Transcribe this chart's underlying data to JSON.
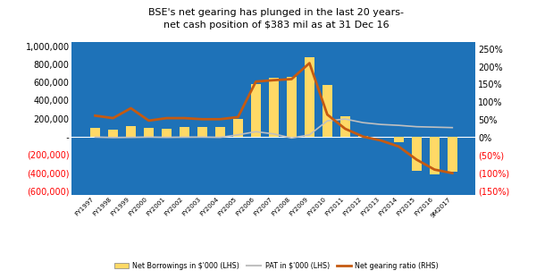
{
  "title": "BSE's net gearing has plunged in the last 20 years-\nnet cash position of $383 mil as at 31 Dec 16",
  "background_color": "#1E72B8",
  "plot_bg_color": "#1E72B8",
  "outer_bg_color": "#FFFFFF",
  "categories": [
    "FY1997",
    "FY1998",
    "FY1999",
    "FY2000",
    "FY2001",
    "FY2002",
    "FY2003",
    "FY2004",
    "FY2005",
    "FY2006",
    "FY2007",
    "FY2008",
    "FY2009",
    "FY2010",
    "FY2011",
    "FY2012",
    "FY2013",
    "FY2014",
    "FY2015",
    "FY2016",
    "9M2017"
  ],
  "net_borrowings": [
    95000,
    75000,
    115000,
    95000,
    85000,
    105000,
    105000,
    110000,
    195000,
    580000,
    655000,
    665000,
    875000,
    575000,
    230000,
    5000,
    -5000,
    -60000,
    -375000,
    -415000,
    -385000
  ],
  "pat": [
    -5000,
    -10000,
    -8000,
    -5000,
    -8000,
    -6000,
    -5000,
    -8000,
    20000,
    55000,
    30000,
    -15000,
    20000,
    175000,
    195000,
    155000,
    135000,
    125000,
    110000,
    105000,
    100000
  ],
  "net_gearing": [
    0.62,
    0.55,
    0.83,
    0.48,
    0.55,
    0.55,
    0.52,
    0.52,
    0.58,
    1.58,
    1.62,
    1.65,
    2.1,
    0.65,
    0.25,
    0.03,
    -0.08,
    -0.25,
    -0.62,
    -0.9,
    -1.0
  ],
  "bar_color": "#FFD966",
  "pat_color": "#C0C0C0",
  "gearing_color": "#C55A11",
  "ylim_left": [
    -650000,
    1050000
  ],
  "ylim_right": [
    -1.625,
    2.7
  ],
  "yticks_left": [
    -600000,
    -400000,
    -200000,
    0,
    200000,
    400000,
    600000,
    800000,
    1000000
  ],
  "yticks_right": [
    -1.5,
    -1.0,
    -0.5,
    0.0,
    0.5,
    1.0,
    1.5,
    2.0,
    2.5
  ],
  "zero_line_color": "#FFFFFF",
  "legend_bg": "#FFFFFF"
}
